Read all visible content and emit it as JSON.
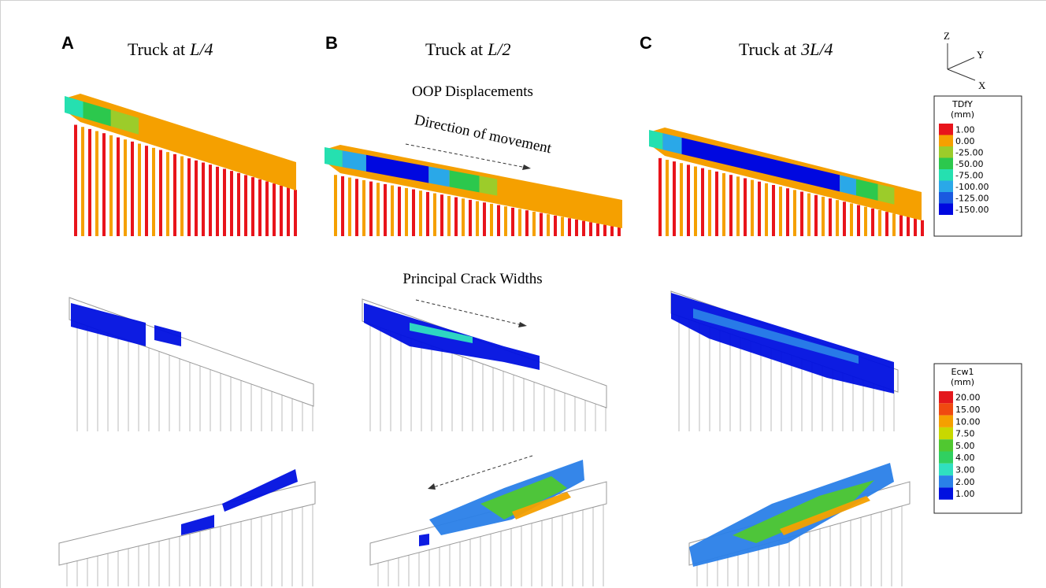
{
  "figure": {
    "panels": [
      {
        "label": "A",
        "title": {
          "text": "Truck at",
          "italic": "L/4"
        }
      },
      {
        "label": "B",
        "title": {
          "text": "Truck at",
          "italic": "L/2"
        }
      },
      {
        "label": "C",
        "title": {
          "text": "Truck at",
          "italic": "3L/4"
        }
      }
    ],
    "row_labels": {
      "displacements": "OOP Displacements",
      "cracks": "Principal Crack Widths"
    },
    "arrow_label": "Direction of movement",
    "axes": {
      "z": "Z",
      "y": "Y",
      "x": "X"
    },
    "legends": [
      {
        "title": "TDfY",
        "unit": "(mm)",
        "items": [
          {
            "label": "1.00",
            "color": "#e8141b"
          },
          {
            "label": "0.00",
            "color": "#f5a000"
          },
          {
            "label": "-25.00",
            "color": "#9ccc2a"
          },
          {
            "label": "-50.00",
            "color": "#2cc84d"
          },
          {
            "label": "-75.00",
            "color": "#25e0b0"
          },
          {
            "label": "-100.00",
            "color": "#2aa8e8"
          },
          {
            "label": "-125.00",
            "color": "#1a5ae0"
          },
          {
            "label": "-150.00",
            "color": "#0008e0"
          }
        ]
      },
      {
        "title": "Ecw1",
        "unit": "(mm)",
        "items": [
          {
            "label": "20.00",
            "color": "#e4181c"
          },
          {
            "label": "15.00",
            "color": "#f04a10"
          },
          {
            "label": "10.00",
            "color": "#f5a000"
          },
          {
            "label": "7.50",
            "color": "#c8d800"
          },
          {
            "label": "5.00",
            "color": "#50c830"
          },
          {
            "label": "4.00",
            "color": "#30d060"
          },
          {
            "label": "3.00",
            "color": "#30e0c0"
          },
          {
            "label": "2.00",
            "color": "#2a80e8"
          },
          {
            "label": "1.00",
            "color": "#0010e0"
          }
        ]
      }
    ]
  }
}
